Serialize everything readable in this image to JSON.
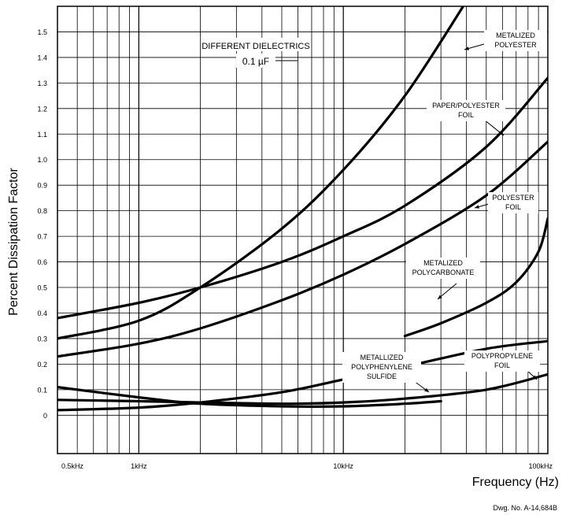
{
  "chart_data": {
    "type": "line",
    "title": "DIFFERENT DIELECTRICS",
    "subtitle": "0.1 µF",
    "xlabel": "Frequency (Hz)",
    "ylabel": "Percent Dissipation Factor",
    "x_scale": "log",
    "xlim": [
      400,
      100000
    ],
    "ylim": [
      -0.15,
      1.6
    ],
    "grid": true,
    "x_ticks": [
      {
        "value": 500,
        "label": "0.5kHz"
      },
      {
        "value": 1000,
        "label": "1kHz"
      },
      {
        "value": 10000,
        "label": "10kHz"
      },
      {
        "value": 100000,
        "label": "100kHz"
      }
    ],
    "y_ticks": [
      {
        "value": 0,
        "label": "0"
      },
      {
        "value": 0.1,
        "label": "0.1"
      },
      {
        "value": 0.2,
        "label": "0.2"
      },
      {
        "value": 0.3,
        "label": "0.3"
      },
      {
        "value": 0.4,
        "label": "0.4"
      },
      {
        "value": 0.5,
        "label": "0.5"
      },
      {
        "value": 0.6,
        "label": "0.6"
      },
      {
        "value": 0.7,
        "label": "0.7"
      },
      {
        "value": 0.8,
        "label": "0.8"
      },
      {
        "value": 0.9,
        "label": "0.9"
      },
      {
        "value": 1.0,
        "label": "1.0"
      },
      {
        "value": 1.1,
        "label": "1.1"
      },
      {
        "value": 1.2,
        "label": "1.2"
      },
      {
        "value": 1.3,
        "label": "1.3"
      },
      {
        "value": 1.4,
        "label": "1.4"
      },
      {
        "value": 1.5,
        "label": "1.5"
      }
    ],
    "series": [
      {
        "name": "METALIZED POLYESTER",
        "x": [
          400,
          1000,
          2000,
          5000,
          10000,
          20000,
          40000
        ],
        "y": [
          0.3,
          0.37,
          0.5,
          0.73,
          0.96,
          1.25,
          1.62
        ]
      },
      {
        "name": "PAPER/POLYESTER FOIL",
        "x": [
          400,
          1000,
          2000,
          5000,
          10000,
          20000,
          50000,
          100000
        ],
        "y": [
          0.38,
          0.44,
          0.5,
          0.6,
          0.7,
          0.82,
          1.05,
          1.32
        ]
      },
      {
        "name": "POLYESTER FOIL",
        "x": [
          400,
          1000,
          2000,
          5000,
          10000,
          20000,
          50000,
          100000
        ],
        "y": [
          0.23,
          0.28,
          0.34,
          0.45,
          0.55,
          0.67,
          0.86,
          1.07
        ]
      },
      {
        "name": "METALIZED POLYCARBONATE",
        "x": [
          20000,
          30000,
          50000,
          70000,
          90000,
          100000
        ],
        "y": [
          0.31,
          0.36,
          0.44,
          0.52,
          0.64,
          0.77
        ]
      },
      {
        "name": "METALLIZED POLYPHENYLENE SULFIDE",
        "x": [
          400,
          1000,
          2000,
          5000,
          10000,
          20000,
          50000,
          100000
        ],
        "y": [
          0.02,
          0.03,
          0.05,
          0.09,
          0.14,
          0.19,
          0.26,
          0.29
        ]
      },
      {
        "name": "POLYPROPYLENE FOIL",
        "x": [
          400,
          1000,
          2000,
          5000,
          10000,
          20000,
          50000,
          100000
        ],
        "y": [
          0.06,
          0.055,
          0.05,
          0.045,
          0.05,
          0.065,
          0.1,
          0.16
        ]
      },
      {
        "name": "",
        "x": [
          400,
          1000,
          2000,
          5000,
          10000,
          20000,
          30000
        ],
        "y": [
          0.11,
          0.07,
          0.045,
          0.035,
          0.035,
          0.045,
          0.055
        ]
      }
    ],
    "annotations": [
      {
        "lines": [
          "METALIZED",
          "POLYESTER"
        ]
      },
      {
        "lines": [
          "PAPER/POLYESTER",
          "FOIL"
        ]
      },
      {
        "lines": [
          "POLYESTER",
          "FOIL"
        ]
      },
      {
        "lines": [
          "METALIZED",
          "POLYCARBONATE"
        ]
      },
      {
        "lines": [
          "METALLIZED",
          "POLYPHENYLENE",
          "SULFIDE"
        ]
      },
      {
        "lines": [
          "POLYPROPYLENE",
          "FOIL"
        ]
      }
    ]
  },
  "drawing_number": "Dwg. No. A-14,684B"
}
